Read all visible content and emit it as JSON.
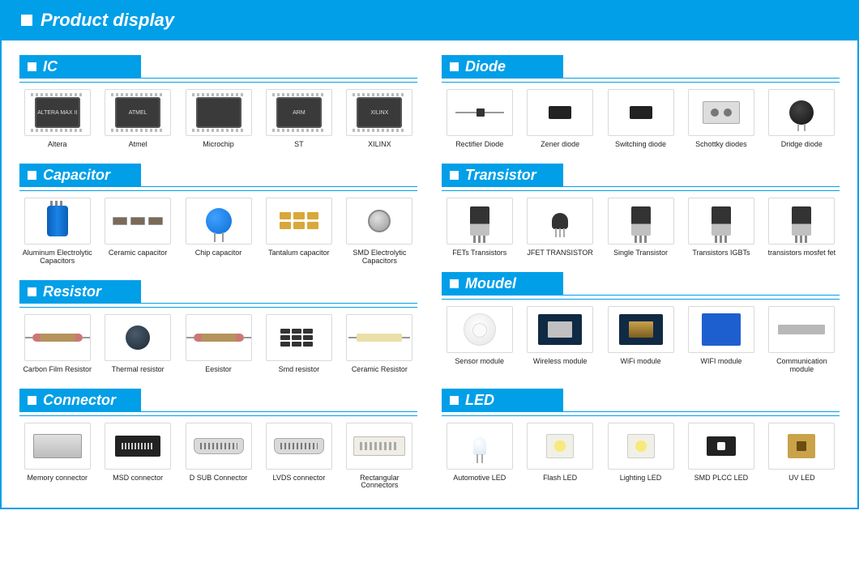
{
  "colors": {
    "brand": "#009fe8",
    "border": "#d9d9d9",
    "text": "#222222"
  },
  "header": "Product display",
  "columns": [
    [
      {
        "title": "IC",
        "items": [
          {
            "label": "Altera",
            "g": "chip",
            "txt": "ALTERA MAX II"
          },
          {
            "label": "Atmel",
            "g": "chip",
            "txt": "ATMEL"
          },
          {
            "label": "Microchip",
            "g": "chip",
            "txt": ""
          },
          {
            "label": "ST",
            "g": "chip",
            "txt": "ARM"
          },
          {
            "label": "XILINX",
            "g": "chip",
            "txt": "XILINX"
          }
        ]
      },
      {
        "title": "Capacitor",
        "items": [
          {
            "label": "Aluminum Electrolytic Capacitors",
            "g": "cyl-cap"
          },
          {
            "label": "Ceramic capacitor",
            "g": "smd-pair"
          },
          {
            "label": "Chip capacitor",
            "g": "disc-cap"
          },
          {
            "label": "Tantalum capacitor",
            "g": "tantalum"
          },
          {
            "label": "SMD Electrolytic Capacitors",
            "g": "smd-can"
          }
        ]
      },
      {
        "title": "Resistor",
        "items": [
          {
            "label": "Carbon Film Resistor",
            "g": "axial-res"
          },
          {
            "label": "Thermal resistor",
            "g": "disc-dark"
          },
          {
            "label": "Eesistor",
            "g": "axial-res"
          },
          {
            "label": "Smd resistor",
            "g": "smd-grid"
          },
          {
            "label": "Ceramic  Resistor",
            "g": "ceramic-res"
          }
        ]
      },
      {
        "title": "Connector",
        "items": [
          {
            "label": "Memory connector",
            "g": "conn-slot"
          },
          {
            "label": "MSD connector",
            "g": "conn-black"
          },
          {
            "label": "D SUB Connector",
            "g": "conn-dsub"
          },
          {
            "label": "LVDS connector",
            "g": "conn-dsub"
          },
          {
            "label": "Rectangular Connectors",
            "g": "conn-rect"
          }
        ]
      }
    ],
    [
      {
        "title": "Diode",
        "items": [
          {
            "label": "Rectifier Diode",
            "g": "diode-axial"
          },
          {
            "label": "Zener diode",
            "g": "smd-diode"
          },
          {
            "label": "Switching diode",
            "g": "smd-diode"
          },
          {
            "label": "Schottky diodes",
            "g": "schottky"
          },
          {
            "label": "Dridge diode",
            "g": "round-diode"
          }
        ]
      },
      {
        "title": "Transistor",
        "items": [
          {
            "label": "FETs Transistors",
            "g": "to220"
          },
          {
            "label": "JFET TRANSISTOR",
            "g": "to92"
          },
          {
            "label": "Single Transistor",
            "g": "to220"
          },
          {
            "label": "Transistors IGBTs",
            "g": "to220"
          },
          {
            "label": "transistors mosfet fet",
            "g": "to220"
          }
        ]
      },
      {
        "title": "Moudel",
        "items": [
          {
            "label": "Sensor module",
            "g": "sensor-disc"
          },
          {
            "label": "Wireless module",
            "g": "mod-board"
          },
          {
            "label": "WiFi  module",
            "g": "mod-board golden"
          },
          {
            "label": "WIFI module",
            "g": "mod-blue"
          },
          {
            "label": "Communication module",
            "g": "mod-flat"
          }
        ]
      },
      {
        "title": "LED",
        "items": [
          {
            "label": "Automotive LED",
            "g": "led-th"
          },
          {
            "label": "Flash LED",
            "g": "led-sq"
          },
          {
            "label": "Lighting LED",
            "g": "led-sq"
          },
          {
            "label": "SMD PLCC LED",
            "g": "led-smd"
          },
          {
            "label": "UV LED",
            "g": "led-gold"
          }
        ]
      }
    ]
  ]
}
